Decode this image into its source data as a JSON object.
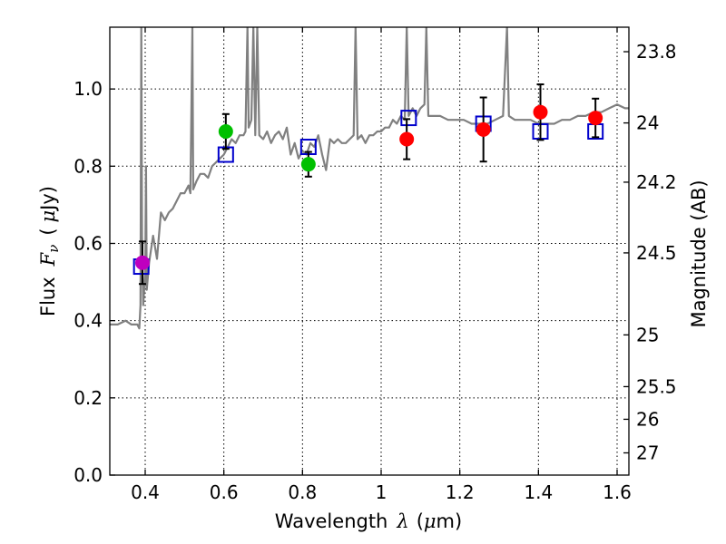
{
  "chart_data": {
    "type": "scatter",
    "xlabel_text": "Wavelength",
    "xlabel_symbol": "λ",
    "xlabel_unit_open": "(",
    "xlabel_unit_mu": "μ",
    "xlabel_unit_rest": "m)",
    "ylabel_text": "Flux",
    "ylabel_symbol": "F",
    "ylabel_sub": "ν",
    "ylabel_unit_open": "(",
    "ylabel_unit_mu": "μ",
    "ylabel_unit_rest": "Jy)",
    "y2label": "Magnitude (AB)",
    "xlim": [
      0.31,
      1.63
    ],
    "ylim": [
      0.0,
      1.16
    ],
    "grid": true,
    "x_ticks": [
      0.4,
      0.6,
      0.8,
      1.0,
      1.2,
      1.4,
      1.6
    ],
    "x_tick_labels": [
      "0.4",
      "0.6",
      "0.8",
      "1",
      "1.2",
      "1.4",
      "1.6"
    ],
    "y_ticks": [
      0.0,
      0.2,
      0.4,
      0.6,
      0.8,
      1.0
    ],
    "y_tick_labels": [
      "0.0",
      "0.2",
      "0.4",
      "0.6",
      "0.8",
      "1.0"
    ],
    "mag_ticks": [
      23.8,
      24,
      24.2,
      24.5,
      25,
      25.5,
      26,
      27
    ],
    "mag_tick_labels": [
      "23.8",
      "24",
      "24.2",
      "24.5",
      "25",
      "25.5",
      "26",
      "27"
    ],
    "colors": {
      "spectrum": "#808080",
      "model": "#0000cc",
      "red": "#ff0000",
      "green": "#00c000",
      "magenta": "#bf00bf",
      "errorbar": "#000000"
    },
    "spectrum": [
      [
        0.31,
        0.39
      ],
      [
        0.33,
        0.39
      ],
      [
        0.35,
        0.4
      ],
      [
        0.365,
        0.39
      ],
      [
        0.38,
        0.39
      ],
      [
        0.385,
        0.38
      ],
      [
        0.388,
        0.44
      ],
      [
        0.39,
        1.16
      ],
      [
        0.392,
        0.62
      ],
      [
        0.395,
        0.44
      ],
      [
        0.4,
        0.52
      ],
      [
        0.402,
        0.8
      ],
      [
        0.404,
        0.48
      ],
      [
        0.41,
        0.55
      ],
      [
        0.42,
        0.62
      ],
      [
        0.43,
        0.56
      ],
      [
        0.44,
        0.68
      ],
      [
        0.45,
        0.66
      ],
      [
        0.46,
        0.68
      ],
      [
        0.47,
        0.69
      ],
      [
        0.48,
        0.71
      ],
      [
        0.49,
        0.73
      ],
      [
        0.5,
        0.73
      ],
      [
        0.51,
        0.75
      ],
      [
        0.515,
        0.73
      ],
      [
        0.52,
        1.16
      ],
      [
        0.522,
        0.74
      ],
      [
        0.53,
        0.76
      ],
      [
        0.54,
        0.78
      ],
      [
        0.55,
        0.78
      ],
      [
        0.56,
        0.77
      ],
      [
        0.57,
        0.8
      ],
      [
        0.58,
        0.81
      ],
      [
        0.59,
        0.82
      ],
      [
        0.6,
        0.83
      ],
      [
        0.61,
        0.85
      ],
      [
        0.62,
        0.87
      ],
      [
        0.63,
        0.86
      ],
      [
        0.64,
        0.88
      ],
      [
        0.65,
        0.88
      ],
      [
        0.655,
        0.89
      ],
      [
        0.66,
        1.16
      ],
      [
        0.663,
        0.9
      ],
      [
        0.67,
        0.92
      ],
      [
        0.675,
        1.16
      ],
      [
        0.68,
        0.88
      ],
      [
        0.685,
        1.16
      ],
      [
        0.69,
        0.88
      ],
      [
        0.7,
        0.87
      ],
      [
        0.71,
        0.89
      ],
      [
        0.72,
        0.86
      ],
      [
        0.73,
        0.88
      ],
      [
        0.74,
        0.89
      ],
      [
        0.75,
        0.87
      ],
      [
        0.76,
        0.9
      ],
      [
        0.77,
        0.83
      ],
      [
        0.78,
        0.86
      ],
      [
        0.79,
        0.82
      ],
      [
        0.8,
        0.84
      ],
      [
        0.81,
        0.83
      ],
      [
        0.82,
        0.86
      ],
      [
        0.83,
        0.85
      ],
      [
        0.84,
        0.88
      ],
      [
        0.85,
        0.83
      ],
      [
        0.86,
        0.79
      ],
      [
        0.87,
        0.87
      ],
      [
        0.88,
        0.86
      ],
      [
        0.89,
        0.87
      ],
      [
        0.9,
        0.86
      ],
      [
        0.91,
        0.86
      ],
      [
        0.92,
        0.87
      ],
      [
        0.93,
        0.88
      ],
      [
        0.935,
        1.16
      ],
      [
        0.94,
        0.87
      ],
      [
        0.95,
        0.88
      ],
      [
        0.96,
        0.86
      ],
      [
        0.97,
        0.88
      ],
      [
        0.98,
        0.88
      ],
      [
        0.99,
        0.89
      ],
      [
        1.0,
        0.89
      ],
      [
        1.01,
        0.9
      ],
      [
        1.02,
        0.9
      ],
      [
        1.03,
        0.92
      ],
      [
        1.04,
        0.91
      ],
      [
        1.05,
        0.93
      ],
      [
        1.06,
        0.92
      ],
      [
        1.065,
        1.16
      ],
      [
        1.07,
        0.93
      ],
      [
        1.08,
        0.95
      ],
      [
        1.09,
        0.93
      ],
      [
        1.1,
        0.95
      ],
      [
        1.11,
        0.96
      ],
      [
        1.115,
        1.16
      ],
      [
        1.12,
        0.93
      ],
      [
        1.13,
        0.93
      ],
      [
        1.15,
        0.93
      ],
      [
        1.17,
        0.92
      ],
      [
        1.19,
        0.92
      ],
      [
        1.21,
        0.92
      ],
      [
        1.23,
        0.91
      ],
      [
        1.25,
        0.91
      ],
      [
        1.27,
        0.91
      ],
      [
        1.29,
        0.92
      ],
      [
        1.31,
        0.93
      ],
      [
        1.32,
        1.16
      ],
      [
        1.325,
        0.93
      ],
      [
        1.34,
        0.92
      ],
      [
        1.36,
        0.92
      ],
      [
        1.38,
        0.92
      ],
      [
        1.4,
        0.91
      ],
      [
        1.42,
        0.91
      ],
      [
        1.44,
        0.91
      ],
      [
        1.46,
        0.92
      ],
      [
        1.48,
        0.92
      ],
      [
        1.5,
        0.93
      ],
      [
        1.52,
        0.93
      ],
      [
        1.54,
        0.94
      ],
      [
        1.56,
        0.94
      ],
      [
        1.58,
        0.95
      ],
      [
        1.6,
        0.96
      ],
      [
        1.62,
        0.95
      ],
      [
        1.63,
        0.95
      ]
    ],
    "model_points": [
      {
        "x": 0.39,
        "y": 0.54
      },
      {
        "x": 0.605,
        "y": 0.83
      },
      {
        "x": 0.815,
        "y": 0.85
      },
      {
        "x": 1.07,
        "y": 0.925
      },
      {
        "x": 1.26,
        "y": 0.91
      },
      {
        "x": 1.405,
        "y": 0.89
      },
      {
        "x": 1.545,
        "y": 0.89
      }
    ],
    "observed_points": [
      {
        "x": 0.393,
        "y": 0.55,
        "err": 0.055,
        "color": "magenta"
      },
      {
        "x": 0.605,
        "y": 0.89,
        "err": 0.045,
        "color": "green"
      },
      {
        "x": 0.815,
        "y": 0.805,
        "err": 0.032,
        "color": "green"
      },
      {
        "x": 1.065,
        "y": 0.87,
        "err": 0.052,
        "color": "red"
      },
      {
        "x": 1.26,
        "y": 0.895,
        "err": 0.083,
        "color": "red"
      },
      {
        "x": 1.405,
        "y": 0.94,
        "err": 0.072,
        "color": "red"
      },
      {
        "x": 1.545,
        "y": 0.925,
        "err": 0.05,
        "color": "red"
      }
    ]
  }
}
